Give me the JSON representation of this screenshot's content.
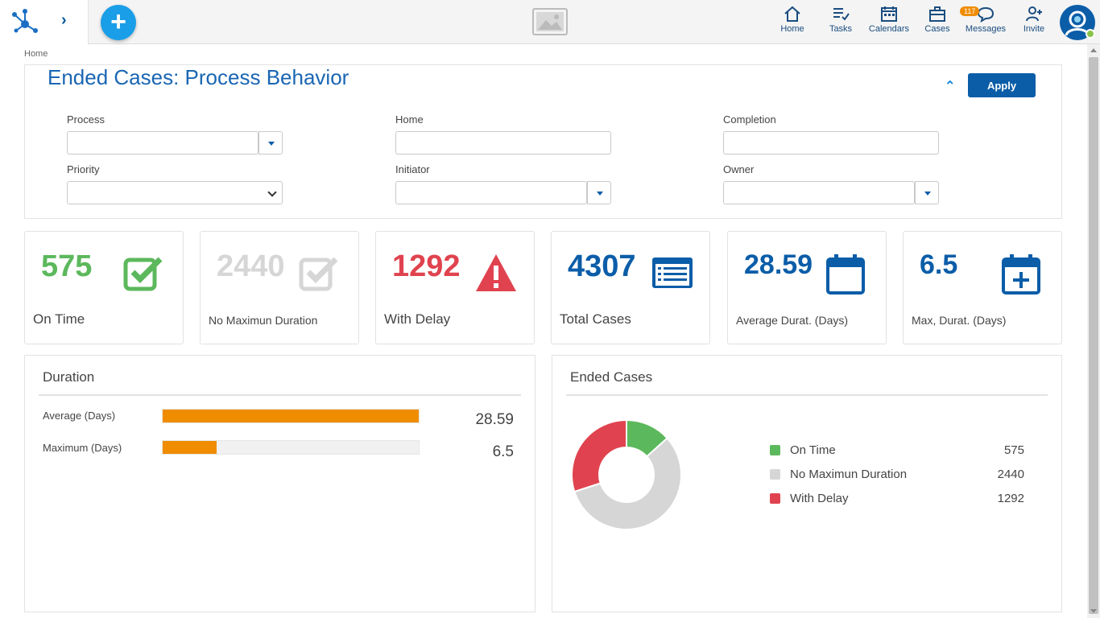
{
  "breadcrumb": "Home",
  "page_title": "Ended Cases: Process Behavior",
  "apply_label": "Apply",
  "nav": [
    {
      "label": "Home"
    },
    {
      "label": "Tasks"
    },
    {
      "label": "Calendars"
    },
    {
      "label": "Cases"
    },
    {
      "label": "Messages",
      "badge": "117"
    },
    {
      "label": "Invite"
    }
  ],
  "filters": {
    "process": {
      "label": "Process",
      "value": ""
    },
    "home": {
      "label": "Home",
      "value": ""
    },
    "completion": {
      "label": "Completion",
      "value": ""
    },
    "priority": {
      "label": "Priority",
      "value": ""
    },
    "initiator": {
      "label": "Initiator",
      "value": ""
    },
    "owner": {
      "label": "Owner",
      "value": ""
    }
  },
  "kpis": [
    {
      "value": "575",
      "label": "On Time",
      "color": "#5cb85c",
      "icon": "check-square-icon"
    },
    {
      "value": "2440",
      "label": "No Maximun Duration",
      "color": "#d6d6d6",
      "icon": "check-square-icon"
    },
    {
      "value": "1292",
      "label": "With Delay",
      "color": "#e0434f",
      "icon": "warning-icon"
    },
    {
      "value": "4307",
      "label": "Total Cases",
      "color": "#0b5da8",
      "icon": "list-icon"
    },
    {
      "value": "28.59",
      "label": "Average Durat. (Days)",
      "color": "#0b5da8",
      "icon": "calendar-icon"
    },
    {
      "value": "6.5",
      "label": "Max, Durat. (Days)",
      "color": "#0b5da8",
      "icon": "calendar-plus-icon"
    }
  ],
  "duration": {
    "title": "Duration",
    "bar_color": "#f08c00",
    "rows": [
      {
        "label": "Average (Days)",
        "value": "28.59",
        "fraction": 1.0
      },
      {
        "label": "Maximum (Days)",
        "value": "6.5",
        "fraction": 0.21
      }
    ]
  },
  "ended_cases": {
    "title": "Ended Cases",
    "legend": [
      {
        "name": "On Time",
        "value": "575",
        "color": "#5cb85c"
      },
      {
        "name": "No Maximun Duration",
        "value": "2440",
        "color": "#d6d6d6"
      },
      {
        "name": "With Delay",
        "value": "1292",
        "color": "#e0434f"
      }
    ]
  },
  "chart_data": {
    "type": "pie",
    "categories": [
      "On Time",
      "No Maximun Duration",
      "With Delay"
    ],
    "values": [
      575,
      2440,
      1292
    ],
    "colors": [
      "#5cb85c",
      "#d6d6d6",
      "#e0434f"
    ],
    "title": "Ended Cases",
    "donut": true
  }
}
